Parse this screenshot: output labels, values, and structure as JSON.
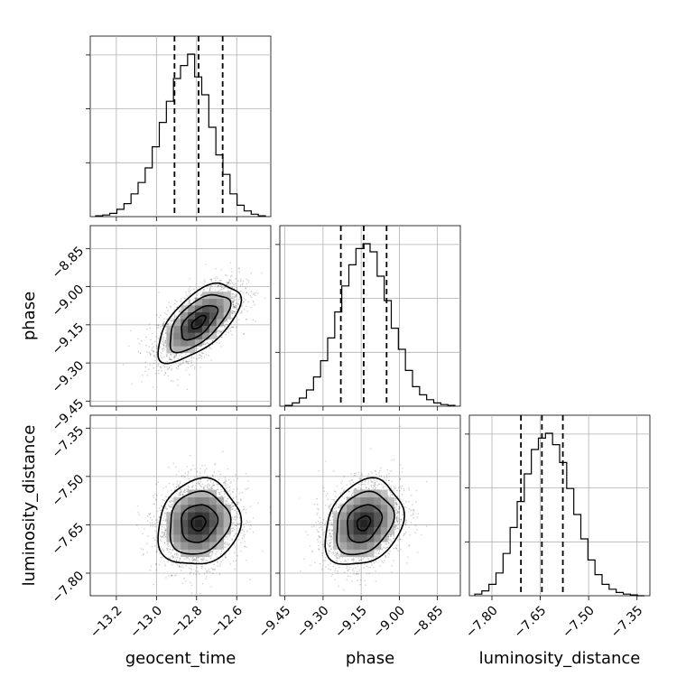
{
  "chart_data": {
    "type": "corner",
    "parameters": [
      "geocent_time",
      "phase",
      "luminosity_distance"
    ],
    "axis_labels": {
      "geocent_time": "geocent_time",
      "phase": "phase",
      "luminosity_distance": "luminosity_distance"
    },
    "ticks": {
      "geocent_time": [
        "−13.2",
        "−13.0",
        "−12.8",
        "−12.6"
      ],
      "phase": [
        "−9.45",
        "−9.30",
        "−9.15",
        "−9.00",
        "−8.85"
      ],
      "luminosity_distance": [
        "−7.80",
        "−7.65",
        "−7.50",
        "−7.35"
      ]
    },
    "ranges": {
      "geocent_time": [
        -13.33,
        -12.43
      ],
      "phase": [
        -9.47,
        -8.76
      ],
      "luminosity_distance": [
        -7.87,
        -7.31
      ]
    },
    "tick_values": {
      "geocent_time": [
        -13.2,
        -13.0,
        -12.8,
        -12.6
      ],
      "phase": [
        -9.45,
        -9.3,
        -9.15,
        -9.0,
        -8.85
      ],
      "luminosity_distance": [
        -7.8,
        -7.65,
        -7.5,
        -7.35
      ]
    },
    "quantiles": {
      "geocent_time": [
        -12.91,
        -12.79,
        -12.67
      ],
      "phase": [
        -9.23,
        -9.14,
        -9.05
      ],
      "luminosity_distance": [
        -7.71,
        -7.645,
        -7.58
      ]
    },
    "histograms": {
      "geocent_time": [
        0.005,
        0.01,
        0.02,
        0.045,
        0.08,
        0.14,
        0.21,
        0.3,
        0.43,
        0.58,
        0.71,
        0.85,
        0.93,
        1.0,
        0.86,
        0.75,
        0.55,
        0.38,
        0.26,
        0.14,
        0.07,
        0.035,
        0.015,
        0.005
      ],
      "phase": [
        0.005,
        0.02,
        0.05,
        0.1,
        0.18,
        0.28,
        0.42,
        0.58,
        0.74,
        0.87,
        0.97,
        1.0,
        0.95,
        0.8,
        0.65,
        0.48,
        0.35,
        0.22,
        0.12,
        0.07,
        0.04,
        0.02,
        0.01,
        0.005
      ],
      "luminosity_distance": [
        0.01,
        0.03,
        0.07,
        0.14,
        0.26,
        0.42,
        0.58,
        0.75,
        0.9,
        0.97,
        1.0,
        0.93,
        0.82,
        0.66,
        0.5,
        0.35,
        0.22,
        0.13,
        0.07,
        0.04,
        0.02,
        0.01,
        0.005,
        0.0
      ]
    },
    "pairs": [
      {
        "x": "geocent_time",
        "y": "phase",
        "mean": [
          -12.79,
          -9.14
        ],
        "sd": [
          0.1,
          0.075
        ],
        "corr": 0.62
      },
      {
        "x": "geocent_time",
        "y": "luminosity_distance",
        "mean": [
          -12.79,
          -7.645
        ],
        "sd": [
          0.1,
          0.065
        ],
        "corr": 0.12
      },
      {
        "x": "phase",
        "y": "luminosity_distance",
        "mean": [
          -9.14,
          -7.645
        ],
        "sd": [
          0.075,
          0.065
        ],
        "corr": 0.25
      }
    ],
    "grid": true
  }
}
